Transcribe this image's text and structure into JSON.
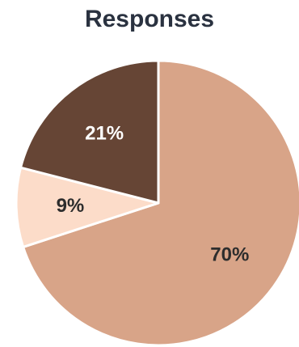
{
  "chart_data": {
    "type": "pie",
    "title": "Responses",
    "slices": [
      {
        "value": 70,
        "label": "70%",
        "color": "#d8a488",
        "label_color": "#2d2d2d"
      },
      {
        "value": 9,
        "label": "9%",
        "color": "#fcdcc9",
        "label_color": "#2d2d2d"
      },
      {
        "value": 21,
        "label": "21%",
        "color": "#664535",
        "label_color": "#ffffff"
      }
    ],
    "start_angle": "12 o'clock",
    "direction": "clockwise",
    "legend": "none"
  }
}
